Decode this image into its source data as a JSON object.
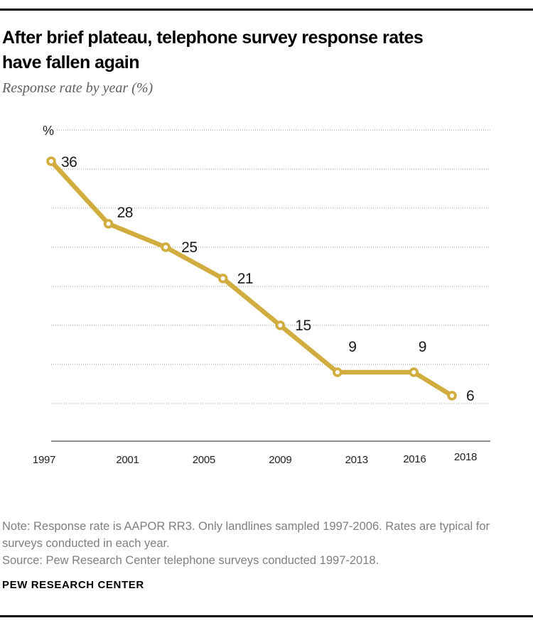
{
  "header": {
    "title_lines": [
      "After brief plateau, telephone survey response rates",
      "have fallen again"
    ],
    "subtitle": "Response rate by year (%)"
  },
  "chart_data": {
    "type": "line",
    "title": "After brief plateau, telephone survey response rates have fallen again",
    "subtitle": "Response rate by year (%)",
    "y_unit_label": "%",
    "x": [
      1997,
      2000,
      2003,
      2006,
      2009,
      2012,
      2016,
      2018
    ],
    "values": [
      36,
      28,
      25,
      21,
      15,
      9,
      9,
      6
    ],
    "point_labels": [
      "36",
      "28",
      "25",
      "21",
      "15",
      "9",
      "9",
      "6"
    ],
    "x_tick_years": [
      1997,
      2001,
      2005,
      2009,
      2013,
      2016,
      2018
    ],
    "x_tick_labels": [
      "1997",
      "2001",
      "2005",
      "2009",
      "2013",
      "2016",
      "2018"
    ],
    "xlim": [
      1997,
      2018
    ],
    "ylim": [
      0,
      40
    ],
    "gridline_values": [
      5,
      10,
      15,
      20,
      25,
      30,
      35,
      40
    ],
    "grid": "horizontal-dotted",
    "legend": "none",
    "colors": {
      "line": "#d0ad3e",
      "marker_fill": "#ffffff",
      "grid": "#999999",
      "axis": "#8f8f8f",
      "data_label": "#1a1a1a",
      "tick_label": "#1f1f1f"
    }
  },
  "footer": {
    "note_lines": [
      "Note: Response rate is AAPOR RR3. Only landlines sampled 1997-2006. Rates are typical for",
      "surveys conducted in each year."
    ],
    "source": "Source: Pew Research Center telephone surveys conducted 1997-2018.",
    "brand": "PEW RESEARCH CENTER"
  }
}
